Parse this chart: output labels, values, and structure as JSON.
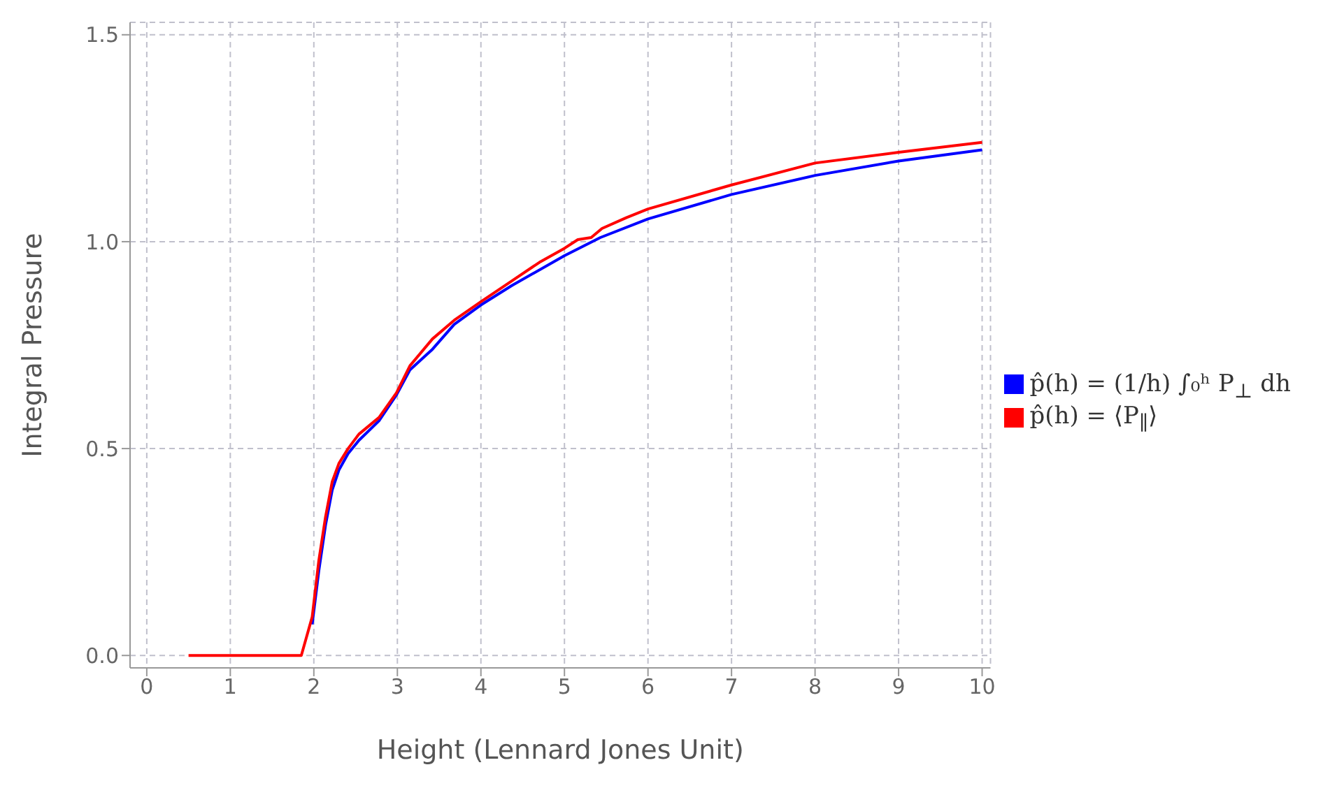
{
  "chart_data": {
    "type": "line",
    "xlabel": "Height (Lennard Jones Unit)",
    "ylabel": "Integral Pressure",
    "xlim": [
      -0.2,
      10.1
    ],
    "ylim": [
      -0.03,
      1.53
    ],
    "xticks": [
      0,
      1,
      2,
      3,
      4,
      5,
      6,
      7,
      8,
      9,
      10
    ],
    "yticks": [
      {
        "value": 0,
        "label": "0.0"
      },
      {
        "value": 0.5,
        "label": "0.5"
      },
      {
        "value": 1,
        "label": "1.0"
      },
      {
        "value": 1.5,
        "label": "1.5"
      }
    ],
    "grid": true,
    "legend": "right",
    "marker": "none",
    "line_style": "solid",
    "series": [
      {
        "name": "p̂(h) = (1/h) ∫₀ʰ P$_{⊥}$ dh",
        "color": "#0000ff",
        "x": [
          1.98,
          2.06,
          2.14,
          2.22,
          2.3,
          2.41,
          2.54,
          2.78,
          2.99,
          3.15,
          3.42,
          3.68,
          4.0,
          4.37,
          5.0,
          5.43,
          6,
          7,
          8,
          9,
          10
        ],
        "values": [
          0.075,
          0.205,
          0.315,
          0.4,
          0.448,
          0.488,
          0.52,
          0.567,
          0.63,
          0.69,
          0.74,
          0.8,
          0.847,
          0.894,
          0.966,
          1.01,
          1.055,
          1.114,
          1.16,
          1.195,
          1.222
        ]
      },
      {
        "name": "p̂(h) = ⟨P$_{∥}$⟩",
        "color": "#ff0000",
        "x": [
          0.5,
          1,
          1.5,
          1.85,
          1.98,
          2.06,
          2.14,
          2.22,
          2.3,
          2.41,
          2.54,
          2.78,
          2.99,
          3.15,
          3.42,
          3.68,
          4.0,
          4.37,
          4.7,
          5.0,
          5.16,
          5.32,
          5.45,
          5.74,
          6,
          7,
          8,
          9,
          10
        ],
        "values": [
          0,
          0,
          0,
          0,
          0.093,
          0.23,
          0.335,
          0.42,
          0.464,
          0.5,
          0.535,
          0.575,
          0.635,
          0.7,
          0.765,
          0.81,
          0.855,
          0.905,
          0.95,
          0.984,
          1.005,
          1.01,
          1.032,
          1.058,
          1.079,
          1.137,
          1.19,
          1.216,
          1.24
        ]
      }
    ]
  }
}
